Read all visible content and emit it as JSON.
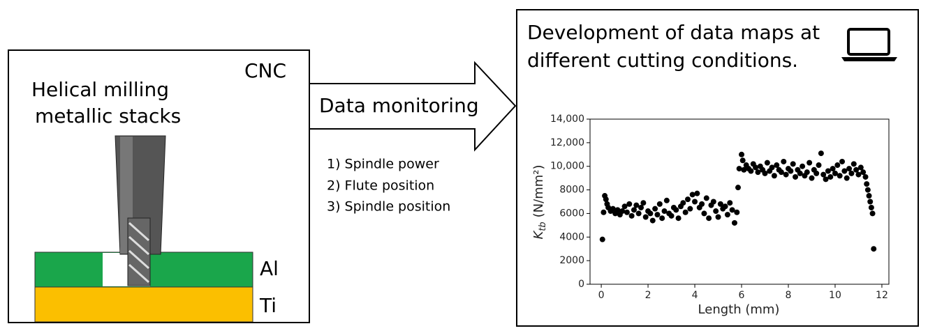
{
  "cnc_box": {
    "label": "CNC",
    "title_lines": [
      "Helical milling",
      "metallic stacks"
    ],
    "layers": [
      "Al",
      "Ti"
    ]
  },
  "arrow": {
    "label": "Data monitoring",
    "items": [
      "1) Spindle power",
      "2) Flute position",
      "3) Spindle position"
    ]
  },
  "result_box": {
    "title_lines": [
      "Development of data maps at",
      "different cutting conditions."
    ]
  },
  "chart_data": {
    "type": "scatter",
    "color": "#000000",
    "xlabel": "Length (mm)",
    "ylabel": {
      "symbol": "K",
      "subscript": "tb",
      "unit": "(N/mm²)"
    },
    "xlim": [
      -0.48,
      12.3
    ],
    "xticks": [
      0,
      2,
      4,
      6,
      8,
      10,
      12
    ],
    "ylim": [
      0,
      14000
    ],
    "yticks": [
      0,
      2000,
      4000,
      6000,
      8000,
      {
        "value": 10000,
        "label": "10,000"
      },
      {
        "value": 12000,
        "label": "12,000"
      },
      {
        "value": 14000,
        "label": "14,000"
      }
    ],
    "x": [
      0.05,
      0.1,
      0.15,
      0.2,
      0.25,
      0.3,
      0.4,
      0.5,
      0.6,
      0.7,
      0.8,
      0.9,
      1.0,
      1.1,
      1.2,
      1.3,
      1.4,
      1.5,
      1.6,
      1.7,
      1.8,
      1.9,
      2.0,
      2.1,
      2.2,
      2.3,
      2.4,
      2.5,
      2.6,
      2.7,
      2.8,
      2.9,
      3.0,
      3.1,
      3.2,
      3.3,
      3.4,
      3.5,
      3.6,
      3.7,
      3.8,
      3.9,
      4.0,
      4.1,
      4.2,
      4.3,
      4.4,
      4.5,
      4.6,
      4.7,
      4.8,
      4.9,
      5.0,
      5.1,
      5.2,
      5.3,
      5.4,
      5.5,
      5.6,
      5.7,
      5.8,
      5.85,
      5.9,
      6.0,
      6.05,
      6.1,
      6.2,
      6.3,
      6.4,
      6.5,
      6.6,
      6.7,
      6.8,
      6.9,
      7.0,
      7.1,
      7.2,
      7.3,
      7.4,
      7.5,
      7.6,
      7.7,
      7.8,
      7.9,
      8.0,
      8.1,
      8.2,
      8.3,
      8.4,
      8.5,
      8.6,
      8.7,
      8.8,
      8.9,
      9.0,
      9.1,
      9.2,
      9.3,
      9.4,
      9.5,
      9.6,
      9.7,
      9.8,
      9.9,
      10.0,
      10.1,
      10.2,
      10.3,
      10.4,
      10.5,
      10.6,
      10.7,
      10.8,
      10.9,
      11.0,
      11.1,
      11.2,
      11.3,
      11.35,
      11.4,
      11.45,
      11.5,
      11.55,
      11.6,
      11.65
    ],
    "values": [
      3800,
      6100,
      7500,
      7200,
      6800,
      6500,
      6200,
      6400,
      6000,
      6300,
      5900,
      6200,
      6600,
      6100,
      6800,
      5800,
      6300,
      6700,
      6000,
      6500,
      6900,
      5700,
      6200,
      6000,
      5400,
      6400,
      5900,
      6800,
      5600,
      6200,
      7100,
      6000,
      5800,
      6500,
      6300,
      5600,
      6600,
      6900,
      6100,
      7200,
      6400,
      7600,
      7000,
      7700,
      6500,
      6800,
      6000,
      7300,
      5600,
      6700,
      7000,
      6200,
      5700,
      6800,
      6400,
      6600,
      5900,
      6900,
      6300,
      5200,
      6100,
      8200,
      9800,
      11000,
      10500,
      9700,
      10100,
      9800,
      9600,
      10200,
      9900,
      9500,
      10000,
      9700,
      9400,
      10300,
      9600,
      9900,
      9200,
      10100,
      9700,
      9500,
      10400,
      9300,
      9800,
      9600,
      10200,
      9100,
      9700,
      9400,
      10000,
      9200,
      9500,
      10300,
      9000,
      9700,
      9400,
      10100,
      11100,
      9300,
      8900,
      9600,
      9100,
      9800,
      9400,
      10100,
      9200,
      10400,
      9600,
      9000,
      9800,
      9400,
      10200,
      9700,
      9300,
      9900,
      9500,
      9100,
      8500,
      8000,
      7500,
      7000,
      6500,
      6000,
      3000
    ]
  }
}
